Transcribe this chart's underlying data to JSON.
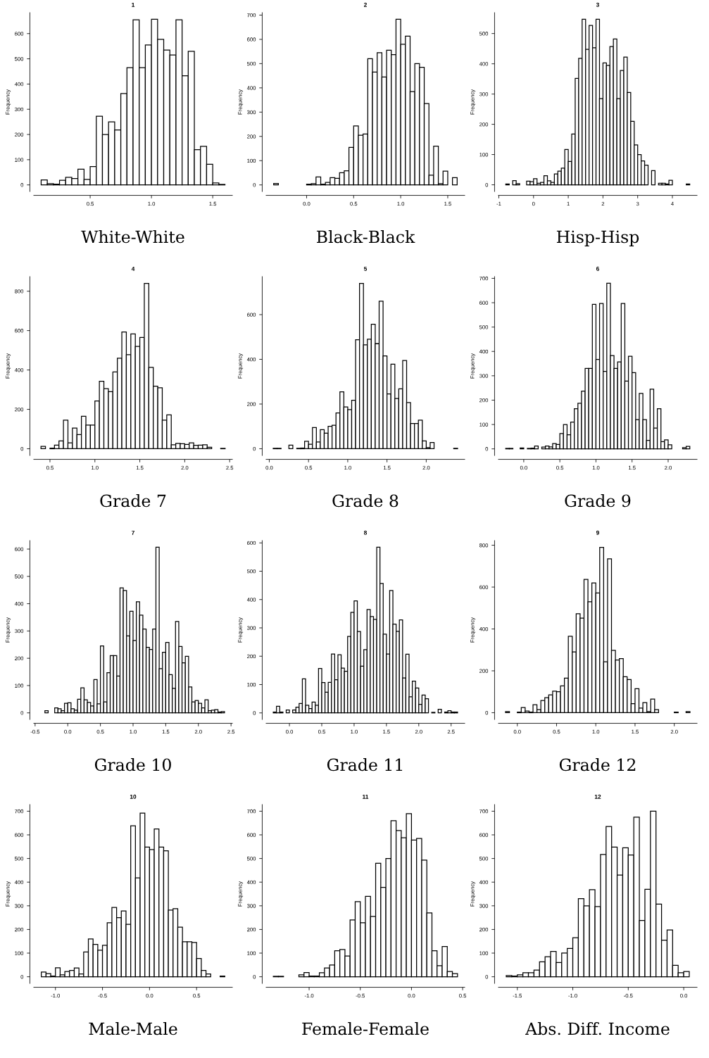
{
  "chart_data": [
    {
      "type": "histogram",
      "title": "1",
      "xlabel": "White-White",
      "ylabel": "Frequency",
      "color": "#ffffff",
      "bins": [
        0.1,
        0.15,
        0.2,
        0.25,
        0.3,
        0.35,
        0.4,
        0.45,
        0.5,
        0.55,
        0.6,
        0.65,
        0.7,
        0.75,
        0.8,
        0.85,
        0.9,
        0.95,
        1.0,
        1.05,
        1.1,
        1.15,
        1.2,
        1.25,
        1.3,
        1.35,
        1.4,
        1.45,
        1.5,
        1.55,
        1.6
      ],
      "values": [
        20,
        5,
        3,
        18,
        30,
        25,
        62,
        22,
        73,
        272,
        200,
        250,
        218,
        362,
        465,
        655,
        465,
        555,
        657,
        577,
        535,
        515,
        655,
        433,
        530,
        140,
        153,
        82,
        8,
        2
      ],
      "xlim": [
        0.04,
        1.66
      ],
      "ylim": [
        -26,
        683
      ],
      "xticks": [
        {
          "value": 0.5,
          "label": "0.5"
        },
        {
          "value": 1,
          "label": "1.0"
        },
        {
          "value": 1.5,
          "label": "1.5"
        }
      ],
      "yticks": [
        0,
        100,
        200,
        300,
        400,
        500,
        600
      ]
    },
    {
      "type": "histogram",
      "title": "2",
      "xlabel": "Black-Black",
      "ylabel": "Frequency",
      "color": "#ffffff",
      "bins": [
        -0.35,
        -0.3,
        -0.25,
        -0.2,
        -0.15,
        -0.1,
        -0.05,
        0.0,
        0.05,
        0.1,
        0.15,
        0.2,
        0.25,
        0.3,
        0.35,
        0.4,
        0.45,
        0.5,
        0.55,
        0.6,
        0.65,
        0.7,
        0.75,
        0.8,
        0.85,
        0.9,
        0.95,
        1.0,
        1.05,
        1.1,
        1.15,
        1.2,
        1.25,
        1.3,
        1.35,
        1.4,
        1.45,
        1.5,
        1.55,
        1.6
      ],
      "values": [
        6,
        0,
        0,
        0,
        0,
        0,
        0,
        3,
        5,
        33,
        3,
        10,
        30,
        27,
        50,
        58,
        155,
        243,
        205,
        210,
        520,
        465,
        545,
        445,
        555,
        537,
        683,
        580,
        613,
        385,
        500,
        485,
        335,
        40,
        160,
        5,
        57,
        0,
        30
      ],
      "xlim": [
        -0.43,
        1.68
      ],
      "ylim": [
        -27,
        710
      ],
      "xticks": [
        {
          "value": 0,
          "label": "0.0"
        },
        {
          "value": 0.5,
          "label": "0.5"
        },
        {
          "value": 1,
          "label": "1.0"
        },
        {
          "value": 1.5,
          "label": "1.5"
        }
      ],
      "yticks": [
        0,
        100,
        200,
        300,
        400,
        500,
        600,
        700
      ]
    },
    {
      "type": "histogram",
      "title": "3",
      "xlabel": "Hisp-Hisp",
      "ylabel": "Frequency",
      "color": "#ffffff",
      "bins": [
        -0.8,
        -0.7,
        -0.6,
        -0.5,
        -0.4,
        -0.3,
        -0.2,
        -0.1,
        0.0,
        0.1,
        0.2,
        0.3,
        0.4,
        0.5,
        0.6,
        0.7,
        0.8,
        0.9,
        1.0,
        1.1,
        1.2,
        1.3,
        1.4,
        1.5,
        1.6,
        1.7,
        1.8,
        1.9,
        2.0,
        2.1,
        2.2,
        2.3,
        2.4,
        2.5,
        2.6,
        2.7,
        2.8,
        2.9,
        3.0,
        3.1,
        3.2,
        3.3,
        3.4,
        3.5,
        3.6,
        3.7,
        3.8,
        3.9,
        4.0,
        4.1,
        4.2,
        4.3,
        4.4,
        4.5
      ],
      "values": [
        3,
        0,
        14,
        4,
        0,
        0,
        12,
        10,
        20,
        5,
        8,
        30,
        13,
        8,
        36,
        45,
        55,
        117,
        77,
        168,
        352,
        418,
        547,
        448,
        527,
        453,
        547,
        285,
        403,
        395,
        457,
        482,
        285,
        378,
        422,
        305,
        210,
        132,
        100,
        79,
        65,
        0,
        47,
        0,
        5,
        5,
        3,
        15,
        0,
        0,
        0,
        0,
        3
      ],
      "xlim": [
        -1.01,
        4.71
      ],
      "ylim": [
        -22,
        569
      ],
      "xticks": [
        -1,
        0,
        1,
        2,
        3,
        4
      ],
      "yticks": [
        0,
        100,
        200,
        300,
        400,
        500
      ]
    },
    {
      "type": "histogram",
      "title": "4",
      "xlabel": "Grade 7",
      "ylabel": "Frequency",
      "color": "#ffffff",
      "bins": [
        0.4,
        0.45,
        0.5,
        0.55,
        0.6,
        0.65,
        0.7,
        0.75,
        0.8,
        0.85,
        0.9,
        0.95,
        1.0,
        1.05,
        1.1,
        1.15,
        1.2,
        1.25,
        1.3,
        1.35,
        1.4,
        1.45,
        1.5,
        1.55,
        1.6,
        1.65,
        1.7,
        1.75,
        1.8,
        1.85,
        1.9,
        1.95,
        2.0,
        2.05,
        2.1,
        2.15,
        2.2,
        2.25,
        2.3,
        2.35,
        2.4,
        2.45
      ],
      "values": [
        12,
        0,
        3,
        18,
        40,
        145,
        30,
        105,
        72,
        165,
        120,
        120,
        243,
        343,
        305,
        290,
        390,
        460,
        593,
        478,
        583,
        520,
        565,
        840,
        413,
        318,
        310,
        145,
        172,
        20,
        27,
        25,
        22,
        30,
        17,
        18,
        20,
        8,
        0,
        0,
        2
      ],
      "xlim": [
        0.32,
        2.53
      ],
      "ylim": [
        -34,
        874
      ],
      "xticks": [
        {
          "value": 0.5,
          "label": "0.5"
        },
        {
          "value": 1,
          "label": "1.0"
        },
        {
          "value": 1.5,
          "label": "1.5"
        },
        {
          "value": 2,
          "label": "2.0"
        },
        {
          "value": 2.5,
          "label": "2.5"
        }
      ],
      "yticks": [
        0,
        200,
        400,
        600,
        800
      ]
    },
    {
      "type": "histogram",
      "title": "5",
      "xlabel": "Grade 8",
      "ylabel": "Frequency",
      "color": "#ffffff",
      "bins": [
        0.05,
        0.1,
        0.15,
        0.2,
        0.25,
        0.3,
        0.35,
        0.4,
        0.45,
        0.5,
        0.55,
        0.6,
        0.65,
        0.7,
        0.75,
        0.8,
        0.85,
        0.9,
        0.95,
        1.0,
        1.05,
        1.1,
        1.15,
        1.2,
        1.25,
        1.3,
        1.35,
        1.4,
        1.45,
        1.5,
        1.55,
        1.6,
        1.65,
        1.7,
        1.75,
        1.8,
        1.85,
        1.9,
        1.95,
        2.0,
        2.05,
        2.1,
        2.15,
        2.2,
        2.25,
        2.3,
        2.35,
        2.4
      ],
      "values": [
        2,
        2,
        0,
        0,
        16,
        0,
        2,
        3,
        33,
        20,
        95,
        30,
        85,
        70,
        100,
        105,
        160,
        255,
        187,
        175,
        217,
        488,
        740,
        465,
        490,
        557,
        470,
        660,
        415,
        245,
        378,
        225,
        268,
        395,
        207,
        113,
        113,
        128,
        35,
        5,
        28,
        0,
        0,
        0,
        0,
        0,
        2
      ],
      "xlim": [
        -0.04,
        2.49
      ],
      "ylim": [
        -30,
        770
      ],
      "xticks": [
        {
          "value": 0,
          "label": "0.0"
        },
        {
          "value": 0.5,
          "label": "0.5"
        },
        {
          "value": 1,
          "label": "1.0"
        },
        {
          "value": 1.5,
          "label": "1.5"
        },
        {
          "value": 2,
          "label": "2.0"
        }
      ],
      "yticks": [
        0,
        200,
        400,
        600
      ]
    },
    {
      "type": "histogram",
      "title": "6",
      "xlabel": "Grade 9",
      "ylabel": "Frequency",
      "color": "#ffffff",
      "bins": [
        -0.25,
        -0.2,
        -0.15,
        -0.1,
        -0.05,
        0.0,
        0.05,
        0.1,
        0.15,
        0.2,
        0.25,
        0.3,
        0.35,
        0.4,
        0.45,
        0.5,
        0.55,
        0.6,
        0.65,
        0.7,
        0.75,
        0.8,
        0.85,
        0.9,
        0.95,
        1.0,
        1.05,
        1.1,
        1.15,
        1.2,
        1.25,
        1.3,
        1.35,
        1.4,
        1.45,
        1.5,
        1.55,
        1.6,
        1.65,
        1.7,
        1.75,
        1.8,
        1.85,
        1.9,
        1.95,
        2.0,
        2.05,
        2.1,
        2.15,
        2.2,
        2.25,
        2.3
      ],
      "values": [
        2,
        2,
        0,
        0,
        4,
        0,
        2,
        3,
        12,
        0,
        7,
        12,
        8,
        22,
        18,
        63,
        100,
        58,
        110,
        165,
        187,
        237,
        330,
        330,
        593,
        367,
        597,
        318,
        680,
        383,
        330,
        357,
        597,
        278,
        380,
        313,
        120,
        228,
        120,
        35,
        245,
        85,
        165,
        30,
        37,
        17,
        0,
        0,
        0,
        5,
        10
      ],
      "xlim": [
        -0.35,
        2.4
      ],
      "ylim": [
        -27,
        707
      ],
      "xticks": [
        {
          "value": 0,
          "label": "0.0"
        },
        {
          "value": 0.5,
          "label": "0.5"
        },
        {
          "value": 1,
          "label": "1.0"
        },
        {
          "value": 1.5,
          "label": "1.5"
        },
        {
          "value": 2,
          "label": "2.0"
        }
      ],
      "yticks": [
        0,
        100,
        200,
        300,
        400,
        500,
        600,
        700
      ]
    },
    {
      "type": "histogram",
      "title": "7",
      "xlabel": "Grade 10",
      "ylabel": "Frequency",
      "color": "#ffffff",
      "bins": [
        -0.35,
        -0.3,
        -0.25,
        -0.2,
        -0.15,
        -0.1,
        -0.05,
        0.0,
        0.05,
        0.1,
        0.15,
        0.2,
        0.25,
        0.3,
        0.35,
        0.4,
        0.45,
        0.5,
        0.55,
        0.6,
        0.65,
        0.7,
        0.75,
        0.8,
        0.85,
        0.9,
        0.95,
        1.0,
        1.05,
        1.1,
        1.15,
        1.2,
        1.25,
        1.3,
        1.35,
        1.4,
        1.45,
        1.5,
        1.55,
        1.6,
        1.65,
        1.7,
        1.75,
        1.8,
        1.85,
        1.9,
        1.95,
        2.0,
        2.05,
        2.1,
        2.15,
        2.2,
        2.25,
        2.3,
        2.35,
        2.4
      ],
      "values": [
        8,
        0,
        0,
        18,
        15,
        8,
        35,
        37,
        15,
        10,
        50,
        92,
        48,
        38,
        25,
        122,
        33,
        245,
        40,
        147,
        210,
        210,
        135,
        458,
        448,
        282,
        372,
        265,
        407,
        358,
        307,
        240,
        232,
        307,
        607,
        162,
        222,
        258,
        140,
        90,
        335,
        243,
        183,
        207,
        95,
        40,
        45,
        35,
        18,
        48,
        8,
        10,
        12,
        3,
        5
      ],
      "xlim": [
        -0.52,
        2.52
      ],
      "ylim": [
        -24,
        631
      ],
      "xticks": [
        {
          "value": -0.5,
          "label": "-0.5"
        },
        {
          "value": 0,
          "label": "0.0"
        },
        {
          "value": 0.5,
          "label": "0.5"
        },
        {
          "value": 1,
          "label": "1.0"
        },
        {
          "value": 1.5,
          "label": "1.5"
        },
        {
          "value": 2,
          "label": "2.0"
        },
        {
          "value": 2.5,
          "label": "2.5"
        }
      ],
      "yticks": [
        0,
        100,
        200,
        300,
        400,
        500,
        600
      ]
    },
    {
      "type": "histogram",
      "title": "8",
      "xlabel": "Grade 11",
      "ylabel": "Frequency",
      "color": "#ffffff",
      "bins": [
        -0.25,
        -0.2,
        -0.15,
        -0.1,
        -0.05,
        0.0,
        0.05,
        0.1,
        0.15,
        0.2,
        0.25,
        0.3,
        0.35,
        0.4,
        0.45,
        0.5,
        0.55,
        0.6,
        0.65,
        0.7,
        0.75,
        0.8,
        0.85,
        0.9,
        0.95,
        1.0,
        1.05,
        1.1,
        1.15,
        1.2,
        1.25,
        1.3,
        1.35,
        1.4,
        1.45,
        1.5,
        1.55,
        1.6,
        1.65,
        1.7,
        1.75,
        1.8,
        1.85,
        1.9,
        1.95,
        2.0,
        2.05,
        2.1,
        2.15,
        2.2,
        2.25,
        2.3,
        2.35,
        2.4,
        2.45,
        2.5,
        2.55,
        2.6
      ],
      "values": [
        3,
        23,
        3,
        0,
        10,
        0,
        10,
        20,
        33,
        120,
        27,
        15,
        38,
        27,
        157,
        107,
        73,
        108,
        208,
        117,
        205,
        158,
        147,
        270,
        355,
        395,
        287,
        165,
        223,
        365,
        340,
        330,
        585,
        457,
        278,
        208,
        432,
        313,
        288,
        328,
        123,
        207,
        57,
        112,
        88,
        30,
        63,
        50,
        0,
        2,
        0,
        13,
        0,
        3,
        8,
        3,
        3
      ],
      "xlim": [
        -0.36,
        2.71
      ],
      "ylim": [
        -23,
        608
      ],
      "xticks": [
        {
          "value": 0,
          "label": "0.0"
        },
        {
          "value": 0.5,
          "label": "0.5"
        },
        {
          "value": 1,
          "label": "1.0"
        },
        {
          "value": 1.5,
          "label": "1.5"
        },
        {
          "value": 2,
          "label": "2.0"
        },
        {
          "value": 2.5,
          "label": "2.5"
        }
      ],
      "yticks": [
        0,
        100,
        200,
        300,
        400,
        500,
        600
      ]
    },
    {
      "type": "histogram",
      "title": "9",
      "xlabel": "Grade 12",
      "ylabel": "Frequency",
      "color": "#ffffff",
      "bins": [
        -0.15,
        -0.1,
        -0.05,
        0.0,
        0.05,
        0.1,
        0.15,
        0.2,
        0.25,
        0.3,
        0.35,
        0.4,
        0.45,
        0.5,
        0.55,
        0.6,
        0.65,
        0.7,
        0.75,
        0.8,
        0.85,
        0.9,
        0.95,
        1.0,
        1.05,
        1.1,
        1.15,
        1.2,
        1.25,
        1.3,
        1.35,
        1.4,
        1.45,
        1.5,
        1.55,
        1.6,
        1.65,
        1.7,
        1.75,
        1.8,
        1.85,
        1.9,
        1.95,
        2.0,
        2.05,
        2.1,
        2.15,
        2.2
      ],
      "values": [
        5,
        0,
        0,
        3,
        25,
        8,
        3,
        38,
        15,
        58,
        72,
        85,
        103,
        100,
        128,
        165,
        365,
        290,
        473,
        452,
        637,
        530,
        620,
        572,
        790,
        243,
        735,
        298,
        252,
        258,
        172,
        158,
        43,
        115,
        22,
        48,
        5,
        65,
        15,
        0,
        0,
        0,
        0,
        3,
        0,
        0,
        5
      ],
      "xlim": [
        -0.24,
        2.29
      ],
      "ylim": [
        -32,
        822
      ],
      "xticks": [
        {
          "value": 0,
          "label": "0.0"
        },
        {
          "value": 0.5,
          "label": "0.5"
        },
        {
          "value": 1,
          "label": "1.0"
        },
        {
          "value": 1.5,
          "label": "1.5"
        },
        {
          "value": 2,
          "label": "2.0"
        }
      ],
      "yticks": [
        0,
        200,
        400,
        600,
        800
      ]
    },
    {
      "type": "histogram",
      "title": "10",
      "xlabel": "Male-Male",
      "ylabel": "Frequency",
      "color": "#ffffff",
      "bins": [
        -1.15,
        -1.1,
        -1.05,
        -1.0,
        -0.95,
        -0.9,
        -0.85,
        -0.8,
        -0.75,
        -0.7,
        -0.65,
        -0.6,
        -0.55,
        -0.5,
        -0.45,
        -0.4,
        -0.35,
        -0.3,
        -0.25,
        -0.2,
        -0.15,
        -0.1,
        -0.05,
        0.0,
        0.05,
        0.1,
        0.15,
        0.2,
        0.25,
        0.3,
        0.35,
        0.4,
        0.45,
        0.5,
        0.55,
        0.6,
        0.65,
        0.7,
        0.75,
        0.8
      ],
      "values": [
        20,
        13,
        3,
        38,
        8,
        22,
        27,
        37,
        12,
        105,
        160,
        137,
        112,
        133,
        228,
        293,
        250,
        278,
        222,
        638,
        418,
        692,
        548,
        538,
        625,
        548,
        533,
        282,
        288,
        210,
        148,
        148,
        145,
        77,
        27,
        12,
        0,
        0,
        3
      ],
      "xlim": [
        -1.23,
        0.88
      ],
      "ylim": [
        -28,
        728
      ],
      "xticks": [
        {
          "value": -1,
          "label": "-1.0"
        },
        {
          "value": -0.5,
          "label": "-0.5"
        },
        {
          "value": 0,
          "label": "0.0"
        },
        {
          "value": 0.5,
          "label": "0.5"
        }
      ],
      "yticks": [
        0,
        100,
        200,
        300,
        400,
        500,
        600,
        700
      ]
    },
    {
      "type": "histogram",
      "title": "11",
      "xlabel": "Female-Female",
      "ylabel": "Frequency",
      "color": "#ffffff",
      "bins": [
        -1.35,
        -1.3,
        -1.25,
        -1.2,
        -1.15,
        -1.1,
        -1.05,
        -1.0,
        -0.95,
        -0.9,
        -0.85,
        -0.8,
        -0.75,
        -0.7,
        -0.65,
        -0.6,
        -0.55,
        -0.5,
        -0.45,
        -0.4,
        -0.35,
        -0.3,
        -0.25,
        -0.2,
        -0.15,
        -0.1,
        -0.05,
        0.0,
        0.05,
        0.1,
        0.15,
        0.2,
        0.25,
        0.3,
        0.35,
        0.4,
        0.45
      ],
      "values": [
        2,
        2,
        0,
        0,
        0,
        8,
        18,
        3,
        3,
        17,
        37,
        50,
        110,
        115,
        88,
        240,
        318,
        228,
        340,
        255,
        480,
        378,
        500,
        660,
        618,
        588,
        690,
        578,
        585,
        493,
        270,
        110,
        47,
        128,
        22,
        13
      ],
      "xlim": [
        -1.42,
        0.52
      ],
      "ylim": [
        -28,
        728
      ],
      "xticks": [
        {
          "value": -1,
          "label": "-1.0"
        },
        {
          "value": -0.5,
          "label": "-0.5"
        },
        {
          "value": 0,
          "label": "0.0"
        },
        {
          "value": 0.5,
          "label": "0.5"
        }
      ],
      "yticks": [
        0,
        100,
        200,
        300,
        400,
        500,
        600,
        700
      ]
    },
    {
      "type": "histogram",
      "title": "12",
      "xlabel": "Abs. Diff. Income",
      "ylabel": "Frequency",
      "color": "#ffffff",
      "bins": [
        -1.6,
        -1.55,
        -1.5,
        -1.45,
        -1.4,
        -1.35,
        -1.3,
        -1.25,
        -1.2,
        -1.15,
        -1.1,
        -1.05,
        -1.0,
        -0.95,
        -0.9,
        -0.85,
        -0.8,
        -0.75,
        -0.7,
        -0.65,
        -0.6,
        -0.55,
        -0.5,
        -0.45,
        -0.4,
        -0.35,
        -0.3,
        -0.25,
        -0.2,
        -0.15,
        -0.1,
        -0.05,
        0.0,
        0.05
      ],
      "values": [
        5,
        3,
        8,
        17,
        17,
        28,
        63,
        85,
        107,
        60,
        100,
        120,
        165,
        330,
        300,
        368,
        297,
        517,
        635,
        548,
        430,
        545,
        515,
        675,
        238,
        370,
        700,
        307,
        155,
        198,
        48,
        17,
        22
      ],
      "xlim": [
        -1.67,
        0.12
      ],
      "ylim": [
        -28,
        728
      ],
      "xticks": [
        {
          "value": -1.5,
          "label": "-1.5"
        },
        {
          "value": -1,
          "label": "-1.0"
        },
        {
          "value": -0.5,
          "label": "-0.5"
        },
        {
          "value": 0,
          "label": "0.0"
        }
      ],
      "yticks": [
        0,
        100,
        200,
        300,
        400,
        500,
        600,
        700
      ]
    }
  ]
}
